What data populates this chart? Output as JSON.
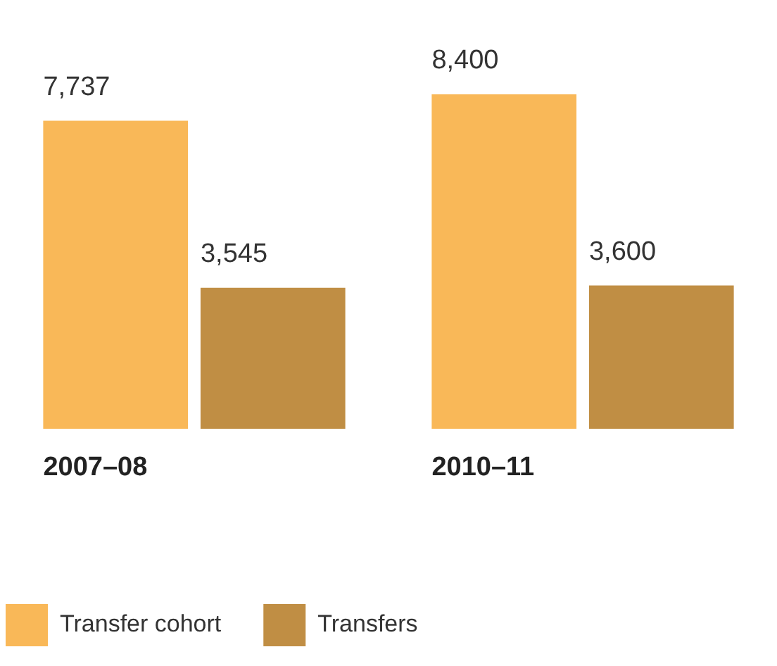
{
  "chart_data": {
    "type": "bar",
    "categories": [
      "2007–08",
      "2010–11"
    ],
    "series": [
      {
        "name": "Transfer cohort",
        "color": "#f9b858",
        "values": [
          7737,
          8400
        ],
        "value_labels": [
          "7,737",
          "8,400"
        ]
      },
      {
        "name": "Transfers",
        "color": "#c08e44",
        "values": [
          3545,
          3600
        ],
        "value_labels": [
          "3,545",
          "3,600"
        ]
      }
    ],
    "legend": "bottom",
    "grid": false,
    "tick_labels": "x"
  }
}
